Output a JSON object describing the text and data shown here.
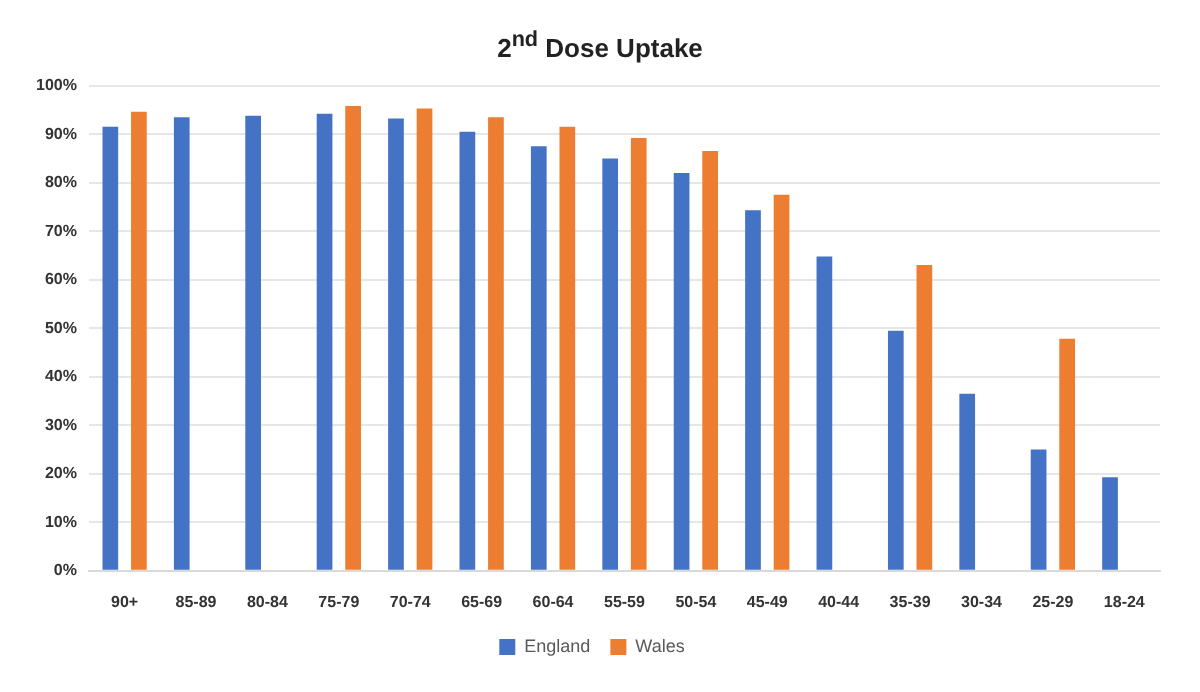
{
  "chart_data": {
    "type": "bar",
    "title": "2$^{nd}$ Dose Uptake",
    "categories": [
      "90+",
      "85-89",
      "80-84",
      "75-79",
      "70-74",
      "65-69",
      "60-64",
      "55-59",
      "50-54",
      "45-49",
      "40-44",
      "35-39",
      "30-34",
      "25-29",
      "18-24"
    ],
    "series": [
      {
        "name": "England",
        "color": "#4472c4",
        "values": [
          91.5,
          93.5,
          93.8,
          94.2,
          93.2,
          90.5,
          87.5,
          85,
          82,
          74.3,
          64.8,
          49.5,
          36.5,
          25,
          19.3
        ]
      },
      {
        "name": "Wales",
        "color": "#ed7d31",
        "values": [
          94.6,
          null,
          null,
          95.8,
          95.3,
          93.5,
          91.5,
          89.2,
          86.5,
          77.5,
          null,
          63,
          null,
          47.8,
          null
        ]
      }
    ],
    "ylim": [
      0,
      100
    ],
    "yticks": [
      {
        "value": 0,
        "label": "0%"
      },
      {
        "value": 10,
        "label": "10%"
      },
      {
        "value": 20,
        "label": "20%"
      },
      {
        "value": 30,
        "label": "30%"
      },
      {
        "value": 40,
        "label": "40%"
      },
      {
        "value": 50,
        "label": "50%"
      },
      {
        "value": 60,
        "label": "60%"
      },
      {
        "value": 70,
        "label": "70%"
      },
      {
        "value": 80,
        "label": "80%"
      },
      {
        "value": 90,
        "label": "90%"
      },
      {
        "value": 100,
        "label": "100%"
      }
    ],
    "grid": "y",
    "legend": "bottom"
  }
}
